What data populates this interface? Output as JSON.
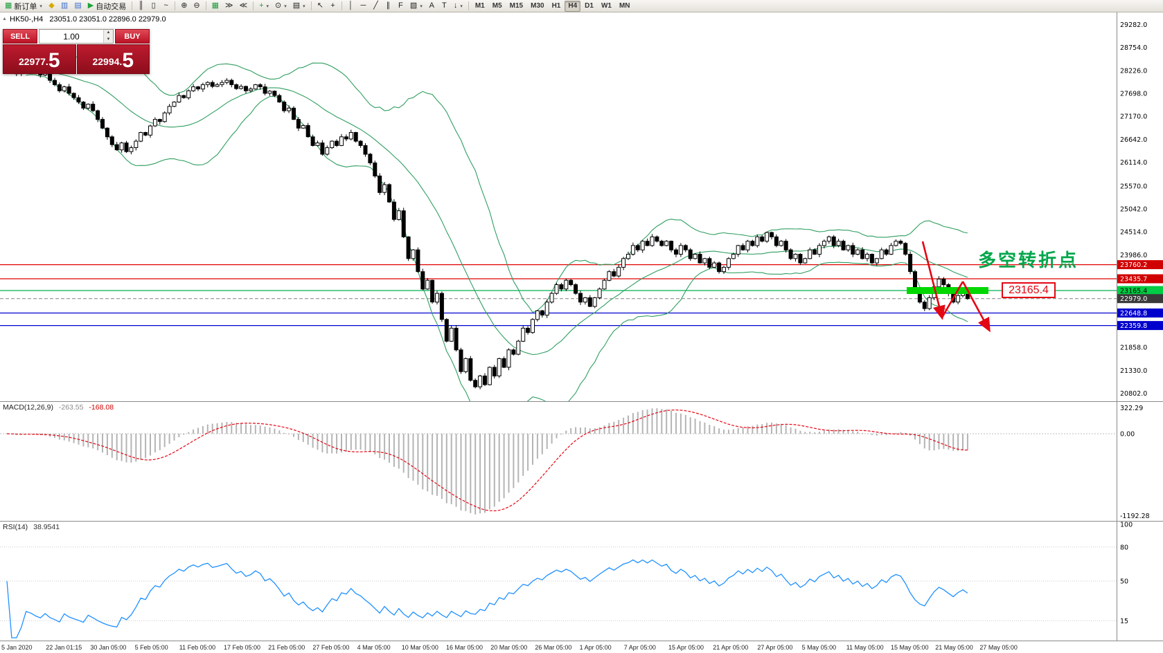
{
  "window": {
    "title_symbol_period": "HK50-,H4",
    "ohlc_text": "23051.0 23051.0 22896.0 22979.0"
  },
  "icons": {
    "caret_down": "▾",
    "spin_up": "▲",
    "spin_down": "▼",
    "panel_toggle": "▲"
  },
  "toolbar": {
    "groups": [
      {
        "items": [
          {
            "name": "new-order-button",
            "glyph": "▦",
            "glyph_color": "#1f9d40",
            "label": "新订单",
            "dropdown": true
          },
          {
            "name": "metaeditor-button",
            "glyph": "◆",
            "glyph_color": "#d8a800"
          },
          {
            "name": "market-watch-button",
            "glyph": "▥",
            "glyph_color": "#3a6ecf"
          },
          {
            "name": "data-window-button",
            "glyph": "▤",
            "glyph_color": "#3a6ecf"
          },
          {
            "name": "auto-trading-button",
            "glyph": "▶",
            "glyph_color": "#18a437",
            "label": "自动交易"
          }
        ]
      },
      {
        "items": [
          {
            "name": "bar-chart-button",
            "glyph": "║"
          },
          {
            "name": "candlestick-chart-button",
            "glyph": "▯"
          },
          {
            "name": "line-chart-button",
            "glyph": "~"
          }
        ]
      },
      {
        "items": [
          {
            "name": "zoom-in-button",
            "glyph": "⊕"
          },
          {
            "name": "zoom-out-button",
            "glyph": "⊖"
          }
        ]
      },
      {
        "items": [
          {
            "name": "tile-windows-button",
            "glyph": "▦",
            "glyph_color": "#1f9d40"
          },
          {
            "name": "auto-scroll-button",
            "glyph": "≫"
          },
          {
            "name": "chart-shift-button",
            "glyph": "≪"
          }
        ]
      },
      {
        "items": [
          {
            "name": "indicators-button",
            "glyph": "+",
            "glyph_color": "#1f9d40",
            "dropdown": true
          },
          {
            "name": "periods-button",
            "glyph": "⊙",
            "dropdown": true
          },
          {
            "name": "templates-button",
            "glyph": "▤",
            "dropdown": true
          }
        ]
      },
      {
        "items": [
          {
            "name": "cursor-button",
            "glyph": "↖"
          },
          {
            "name": "crosshair-button",
            "glyph": "+"
          }
        ]
      },
      {
        "items": [
          {
            "name": "vertical-line-button",
            "glyph": "│"
          },
          {
            "name": "horizontal-line-button",
            "glyph": "─"
          },
          {
            "name": "trendline-button",
            "glyph": "╱"
          },
          {
            "name": "equidistant-channel-button",
            "glyph": "∥"
          },
          {
            "name": "fibonacci-button",
            "glyph": "F"
          },
          {
            "name": "shapes-button",
            "glyph": "▧",
            "dropdown": true
          },
          {
            "name": "text-button",
            "glyph": "A"
          },
          {
            "name": "text-label-button",
            "glyph": "T"
          },
          {
            "name": "arrow-tools-button",
            "glyph": "↓",
            "dropdown": true
          }
        ]
      }
    ],
    "timeframes": [
      "M1",
      "M5",
      "M15",
      "M30",
      "H1",
      "H4",
      "D1",
      "W1",
      "MN"
    ],
    "active_timeframe": "H4"
  },
  "trade_panel": {
    "sell_label": "SELL",
    "buy_label": "BUY",
    "volume": "1.00",
    "sell_price": "22977.",
    "sell_price_frac": "5",
    "buy_price": "22994.",
    "buy_price_frac": "5"
  },
  "chart": {
    "annotation": "多空转折点",
    "level_callout": "23165.4",
    "y_ticks": [
      29282.0,
      28754.0,
      28226.0,
      27698.0,
      27170.0,
      26642.0,
      26114.0,
      25570.0,
      25042.0,
      24514.0,
      23986.0,
      21858.0,
      21330.0,
      20802.0
    ],
    "lines": [
      {
        "name": "resistance-line-1",
        "price": 23760.2,
        "label": "23760.2",
        "color": "#e00000",
        "label_bg": "#d00000",
        "label_fg": "#ffffff",
        "style": "solid"
      },
      {
        "name": "resistance-line-2",
        "price": 23435.7,
        "label": "23435.7",
        "color": "#e00000",
        "label_bg": "#d00000",
        "label_fg": "#ffffff",
        "style": "solid"
      },
      {
        "name": "pivot-level-line",
        "price": 23165.4,
        "label": "23165.4",
        "color": "#00b050",
        "label_bg": "#00cc44",
        "label_fg": "#000000",
        "style": "solid"
      },
      {
        "name": "current-price-line",
        "price": 22979.0,
        "label": "22979.0",
        "color": "#909090",
        "label_bg": "#3a3a3a",
        "label_fg": "#ffffff",
        "style": "dashed"
      },
      {
        "name": "support-line-1",
        "price": 22648.8,
        "label": "22648.8",
        "color": "#0000d0",
        "label_bg": "#0000cc",
        "label_fg": "#ffffff",
        "style": "solid"
      },
      {
        "name": "support-line-2",
        "price": 22359.8,
        "label": "22359.8",
        "color": "#0000d0",
        "label_bg": "#0000cc",
        "label_fg": "#ffffff",
        "style": "solid"
      }
    ]
  },
  "macd": {
    "label": "MACD(12,26,9)",
    "value_main": "-263.55",
    "value_signal": "-168.08",
    "scale_top": "322.29",
    "scale_zero": "0.00",
    "scale_bottom": "-1192.28"
  },
  "rsi": {
    "label": "RSI(14)",
    "value": "38.9541",
    "levels": [
      100,
      80,
      50,
      15
    ]
  },
  "chart_data": {
    "type": "candlestick",
    "symbol": "HK50-",
    "timeframe": "H4",
    "ohlc_display": {
      "open": "23051.0",
      "high": "23051.0",
      "low": "22896.0",
      "close": "22979.0"
    },
    "price_top": 29560,
    "price_bottom": 20620,
    "bollinger_color": "#2f9e60",
    "highlight_level": 23165.4,
    "closes": [
      28300,
      28250,
      28150,
      28220,
      28350,
      28300,
      28200,
      28120,
      28160,
      28000,
      27900,
      27760,
      27850,
      27700,
      27600,
      27500,
      27360,
      27450,
      27300,
      27100,
      26900,
      26700,
      26520,
      26400,
      26560,
      26360,
      26450,
      26600,
      26800,
      26740,
      26950,
      27100,
      27050,
      27250,
      27400,
      27500,
      27650,
      27600,
      27760,
      27850,
      27800,
      27900,
      27950,
      27860,
      27900,
      27950,
      28000,
      27900,
      27810,
      27860,
      27760,
      27800,
      27900,
      27850,
      27700,
      27750,
      27650,
      27500,
      27300,
      27360,
      27100,
      26900,
      26960,
      26700,
      26500,
      26560,
      26300,
      26450,
      26600,
      26500,
      26700,
      26650,
      26800,
      26600,
      26500,
      26300,
      26100,
      25800,
      25420,
      25600,
      25200,
      24800,
      25000,
      24400,
      23900,
      24100,
      23600,
      23200,
      23400,
      22900,
      23100,
      22500,
      22000,
      22300,
      21800,
      21300,
      21600,
      21100,
      20950,
      21200,
      21000,
      21400,
      21200,
      21600,
      21400,
      21800,
      21700,
      22000,
      22300,
      22200,
      22500,
      22700,
      22600,
      22900,
      23100,
      23300,
      23200,
      23400,
      23300,
      23100,
      22900,
      23000,
      22800,
      23000,
      23200,
      23400,
      23600,
      23500,
      23700,
      23900,
      24000,
      24200,
      24100,
      24300,
      24200,
      24400,
      24300,
      24200,
      24300,
      24100,
      24000,
      24200,
      24100,
      23900,
      24000,
      23800,
      23900,
      23700,
      23800,
      23600,
      23700,
      23900,
      24000,
      24200,
      24100,
      24300,
      24200,
      24400,
      24300,
      24500,
      24400,
      24200,
      24300,
      24100,
      23900,
      24000,
      23800,
      23900,
      24100,
      24000,
      24200,
      24300,
      24400,
      24200,
      24300,
      24100,
      24200,
      24000,
      24100,
      23900,
      24000,
      23800,
      23900,
      24100,
      24000,
      24200,
      24300,
      24250,
      24000,
      23600,
      23200,
      22900,
      22750,
      23000,
      23250,
      23430,
      23300,
      23100,
      22900,
      23050,
      23150,
      22979
    ],
    "x_labels": [
      "5 Jan 2020",
      "22 Jan 01:15",
      "30 Jan 05:00",
      "5 Feb 05:00",
      "11 Feb 05:00",
      "17 Feb 05:00",
      "21 Feb 05:00",
      "27 Feb 05:00",
      "4 Mar 05:00",
      "10 Mar 05:00",
      "16 Mar 05:00",
      "20 Mar 05:00",
      "26 Mar 05:00",
      "1 Apr 05:00",
      "7 Apr 05:00",
      "15 Apr 05:00",
      "21 Apr 05:00",
      "27 Apr 05:00",
      "5 May 05:00",
      "11 May 05:00",
      "15 May 05:00",
      "21 May 05:00",
      "27 May 05:00"
    ]
  }
}
